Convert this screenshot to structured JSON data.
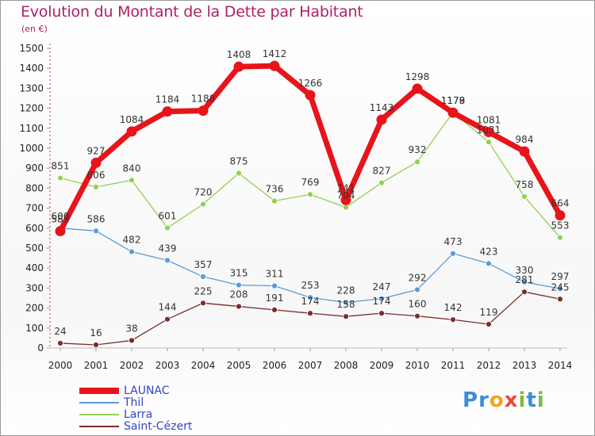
{
  "header": {
    "title": "Evolution du Montant de la Dette par Habitant",
    "subtitle": "(en €)"
  },
  "logo": {
    "text": "Proxiti",
    "colors": [
      "#3a8fd6",
      "#f5a21b",
      "#e94b3c",
      "#7dbb42"
    ]
  },
  "chart_data": {
    "type": "line",
    "x": [
      2000,
      2001,
      2002,
      2003,
      2004,
      2005,
      2006,
      2007,
      2008,
      2009,
      2010,
      2011,
      2012,
      2013,
      2014
    ],
    "ylim": [
      0,
      1500
    ],
    "yticks": [
      0,
      100,
      200,
      300,
      400,
      500,
      600,
      700,
      800,
      900,
      1000,
      1100,
      1200,
      1300,
      1400,
      1500
    ],
    "grid": false,
    "legend_position": "bottom-left",
    "series": [
      {
        "name": "LAUNAC",
        "color": "#e8141b",
        "emphasis": true,
        "values": [
          585,
          927,
          1084,
          1184,
          1188,
          1408,
          1412,
          1266,
          741,
          1143,
          1298,
          1178,
          1081,
          984,
          664
        ]
      },
      {
        "name": "Thil",
        "color": "#5b9bd5",
        "values": [
          600,
          586,
          482,
          439,
          357,
          315,
          311,
          253,
          228,
          247,
          292,
          473,
          423,
          330,
          297
        ]
      },
      {
        "name": "Larra",
        "color": "#8fd14f",
        "values": [
          851,
          806,
          840,
          601,
          720,
          875,
          736,
          769,
          704,
          827,
          932,
          1179,
          1031,
          758,
          553
        ]
      },
      {
        "name": "Saint-Cézert",
        "color": "#7b2c2c",
        "values": [
          24,
          16,
          38,
          144,
          225,
          208,
          191,
          174,
          158,
          174,
          160,
          142,
          119,
          281,
          245
        ]
      }
    ]
  }
}
